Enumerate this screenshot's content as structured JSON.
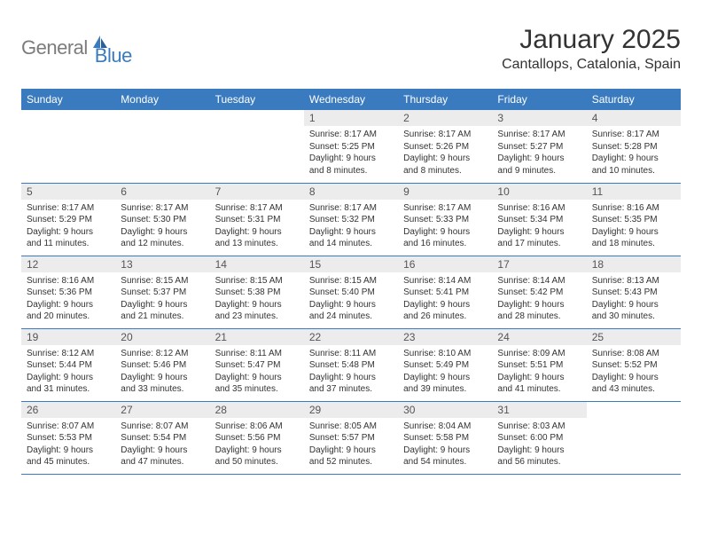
{
  "logo": {
    "text_general": "General",
    "text_blue": "Blue"
  },
  "title": "January 2025",
  "subtitle": "Cantallops, Catalonia, Spain",
  "colors": {
    "header_bg": "#3a7bbf",
    "header_text": "#ffffff",
    "daynum_bg": "#ececec",
    "border": "#3a7bbf",
    "body_text": "#333333",
    "logo_gray": "#7c7c7c",
    "logo_blue": "#3a7bbf"
  },
  "weekdays": [
    "Sunday",
    "Monday",
    "Tuesday",
    "Wednesday",
    "Thursday",
    "Friday",
    "Saturday"
  ],
  "weeks": [
    [
      null,
      null,
      null,
      {
        "n": "1",
        "sr": "8:17 AM",
        "ss": "5:25 PM",
        "dl": "9 hours and 8 minutes."
      },
      {
        "n": "2",
        "sr": "8:17 AM",
        "ss": "5:26 PM",
        "dl": "9 hours and 8 minutes."
      },
      {
        "n": "3",
        "sr": "8:17 AM",
        "ss": "5:27 PM",
        "dl": "9 hours and 9 minutes."
      },
      {
        "n": "4",
        "sr": "8:17 AM",
        "ss": "5:28 PM",
        "dl": "9 hours and 10 minutes."
      }
    ],
    [
      {
        "n": "5",
        "sr": "8:17 AM",
        "ss": "5:29 PM",
        "dl": "9 hours and 11 minutes."
      },
      {
        "n": "6",
        "sr": "8:17 AM",
        "ss": "5:30 PM",
        "dl": "9 hours and 12 minutes."
      },
      {
        "n": "7",
        "sr": "8:17 AM",
        "ss": "5:31 PM",
        "dl": "9 hours and 13 minutes."
      },
      {
        "n": "8",
        "sr": "8:17 AM",
        "ss": "5:32 PM",
        "dl": "9 hours and 14 minutes."
      },
      {
        "n": "9",
        "sr": "8:17 AM",
        "ss": "5:33 PM",
        "dl": "9 hours and 16 minutes."
      },
      {
        "n": "10",
        "sr": "8:16 AM",
        "ss": "5:34 PM",
        "dl": "9 hours and 17 minutes."
      },
      {
        "n": "11",
        "sr": "8:16 AM",
        "ss": "5:35 PM",
        "dl": "9 hours and 18 minutes."
      }
    ],
    [
      {
        "n": "12",
        "sr": "8:16 AM",
        "ss": "5:36 PM",
        "dl": "9 hours and 20 minutes."
      },
      {
        "n": "13",
        "sr": "8:15 AM",
        "ss": "5:37 PM",
        "dl": "9 hours and 21 minutes."
      },
      {
        "n": "14",
        "sr": "8:15 AM",
        "ss": "5:38 PM",
        "dl": "9 hours and 23 minutes."
      },
      {
        "n": "15",
        "sr": "8:15 AM",
        "ss": "5:40 PM",
        "dl": "9 hours and 24 minutes."
      },
      {
        "n": "16",
        "sr": "8:14 AM",
        "ss": "5:41 PM",
        "dl": "9 hours and 26 minutes."
      },
      {
        "n": "17",
        "sr": "8:14 AM",
        "ss": "5:42 PM",
        "dl": "9 hours and 28 minutes."
      },
      {
        "n": "18",
        "sr": "8:13 AM",
        "ss": "5:43 PM",
        "dl": "9 hours and 30 minutes."
      }
    ],
    [
      {
        "n": "19",
        "sr": "8:12 AM",
        "ss": "5:44 PM",
        "dl": "9 hours and 31 minutes."
      },
      {
        "n": "20",
        "sr": "8:12 AM",
        "ss": "5:46 PM",
        "dl": "9 hours and 33 minutes."
      },
      {
        "n": "21",
        "sr": "8:11 AM",
        "ss": "5:47 PM",
        "dl": "9 hours and 35 minutes."
      },
      {
        "n": "22",
        "sr": "8:11 AM",
        "ss": "5:48 PM",
        "dl": "9 hours and 37 minutes."
      },
      {
        "n": "23",
        "sr": "8:10 AM",
        "ss": "5:49 PM",
        "dl": "9 hours and 39 minutes."
      },
      {
        "n": "24",
        "sr": "8:09 AM",
        "ss": "5:51 PM",
        "dl": "9 hours and 41 minutes."
      },
      {
        "n": "25",
        "sr": "8:08 AM",
        "ss": "5:52 PM",
        "dl": "9 hours and 43 minutes."
      }
    ],
    [
      {
        "n": "26",
        "sr": "8:07 AM",
        "ss": "5:53 PM",
        "dl": "9 hours and 45 minutes."
      },
      {
        "n": "27",
        "sr": "8:07 AM",
        "ss": "5:54 PM",
        "dl": "9 hours and 47 minutes."
      },
      {
        "n": "28",
        "sr": "8:06 AM",
        "ss": "5:56 PM",
        "dl": "9 hours and 50 minutes."
      },
      {
        "n": "29",
        "sr": "8:05 AM",
        "ss": "5:57 PM",
        "dl": "9 hours and 52 minutes."
      },
      {
        "n": "30",
        "sr": "8:04 AM",
        "ss": "5:58 PM",
        "dl": "9 hours and 54 minutes."
      },
      {
        "n": "31",
        "sr": "8:03 AM",
        "ss": "6:00 PM",
        "dl": "9 hours and 56 minutes."
      },
      null
    ]
  ],
  "labels": {
    "sunrise": "Sunrise:",
    "sunset": "Sunset:",
    "daylight": "Daylight:"
  }
}
